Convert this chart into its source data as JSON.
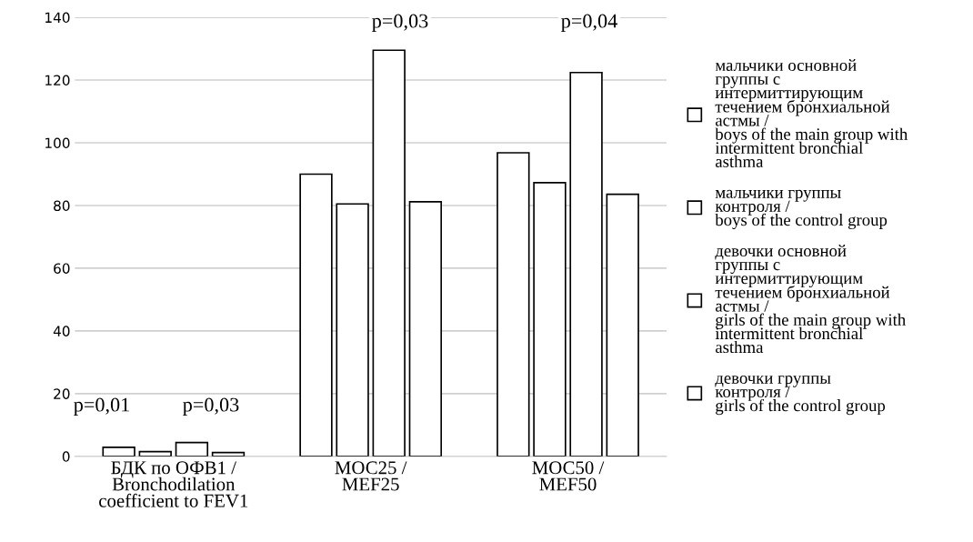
{
  "chart_data": {
    "type": "bar",
    "categories": [
      "БДК по ОФВ1 /\nBronchodilation\ncoefficient to FEV1",
      "МОС25 /\nMEF25",
      "МОС50 /\nMEF50"
    ],
    "series": [
      {
        "name": "мальчики основной\nгруппы с\nинтермиттирующим\nтечением бронхиальной\nастмы /\nboys of the main group with\nintermittent bronchial\nasthma",
        "color": "#ffffff",
        "values": [
          2.9,
          90,
          96.8
        ]
      },
      {
        "name": "мальчики группы\nконтроля /\nboys of the control group",
        "color": "#ffffff",
        "values": [
          1.5,
          80.5,
          87.3
        ]
      },
      {
        "name": "девочки основной\nгруппы с\nинтермиттирующим\nтечением бронхиальной\nастмы /\ngirls of the main group with\nintermittent bronchial\nasthma",
        "color": "#ffffff",
        "values": [
          4.4,
          129.5,
          122.4
        ]
      },
      {
        "name": "девочки группы\nконтроля /\ngirls of the control group",
        "color": "#ffffff",
        "values": [
          1.2,
          81.2,
          83.6
        ]
      }
    ],
    "ylim": [
      0,
      140
    ],
    "yticks": [
      0,
      20,
      40,
      60,
      80,
      100,
      120,
      140
    ],
    "grid": "y",
    "legend": "right",
    "annotations": [
      "p=0,01",
      "p=0,03",
      "p=0,03",
      "p=0,04"
    ]
  }
}
